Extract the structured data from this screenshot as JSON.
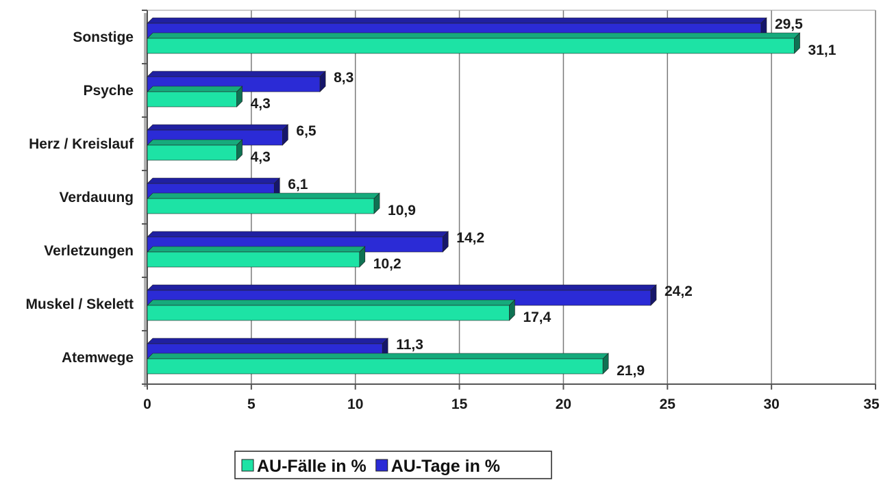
{
  "chart_data": {
    "type": "bar",
    "orientation": "horizontal",
    "categories": [
      "Sonstige",
      "Psyche",
      "Herz / Kreislauf",
      "Verdauung",
      "Verletzungen",
      "Muskel / Skelett",
      "Atemwege"
    ],
    "series": [
      {
        "name": "AU-Tage in %",
        "color": "#2b2bd6",
        "values": [
          29.5,
          8.3,
          6.5,
          6.1,
          14.2,
          24.2,
          11.3
        ],
        "labels": [
          "29,5",
          "8,3",
          "6,5",
          "6,1",
          "14,2",
          "24,2",
          "11,3"
        ]
      },
      {
        "name": "AU-Fälle in %",
        "color": "#1de3a5",
        "values": [
          31.1,
          4.3,
          4.3,
          10.9,
          10.2,
          17.4,
          21.9
        ],
        "labels": [
          "31,1",
          "4,3",
          "4,3",
          "10,9",
          "10,2",
          "17,4",
          "21,9"
        ]
      }
    ],
    "xlim": [
      0,
      35
    ],
    "xticks": [
      0,
      5,
      10,
      15,
      20,
      25,
      30,
      35
    ],
    "grid": true,
    "legend_position": "bottom",
    "legend_order": [
      "AU-Fälle in %",
      "AU-Tage in %"
    ],
    "title": "",
    "xlabel": "",
    "ylabel": ""
  }
}
